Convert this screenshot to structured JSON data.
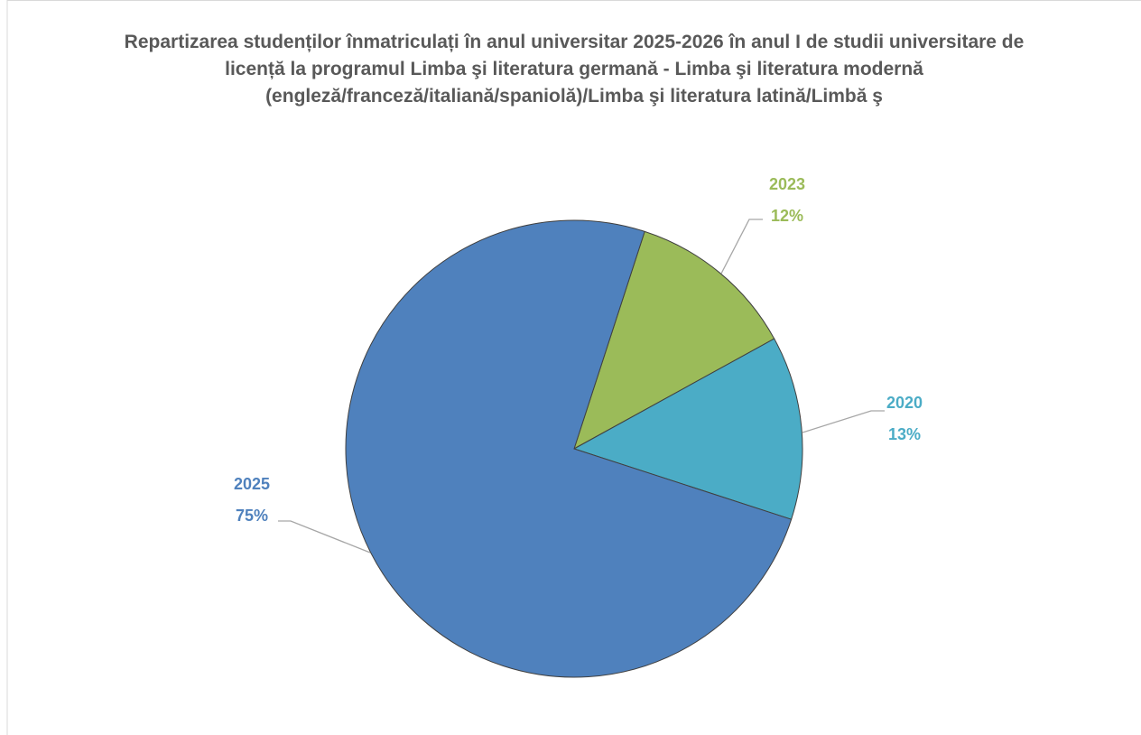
{
  "chart_data": {
    "type": "pie",
    "title": "Repartizarea studenților înmatriculați în anul universitar 2025-2026 în anul I de studii universitare de licență la programul Limba şi literatura germană - Limba şi literatura modernă (engleză/franceză/italiană/spaniolă)/Limba şi literatura latină/Limbă ş",
    "categories": [
      "2023",
      "2020",
      "2025"
    ],
    "values": [
      12,
      13,
      75
    ],
    "value_labels": [
      "12%",
      "13%",
      "75%"
    ],
    "colors": [
      "#9bbb59",
      "#4bacc6",
      "#4f81bd"
    ]
  }
}
